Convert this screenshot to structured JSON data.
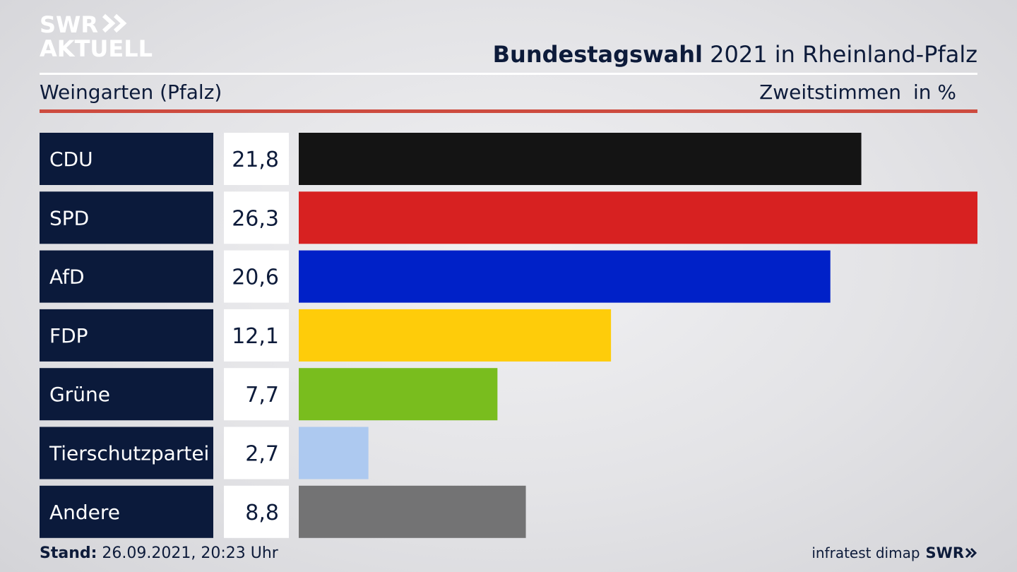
{
  "header": {
    "logo_line1": "SWR",
    "logo_line2": "AKTUELL",
    "title_bold": "Bundestagswahl",
    "title_rest": " 2021 in Rheinland-Pfalz",
    "subtitle": "Weingarten (Pfalz)",
    "vote_type": "Zweitstimmen",
    "unit": "in %"
  },
  "chart_data": {
    "type": "bar",
    "orientation": "horizontal",
    "categories": [
      "CDU",
      "SPD",
      "AfD",
      "FDP",
      "Grüne",
      "Tierschutzpartei",
      "Andere"
    ],
    "values": [
      21.8,
      26.3,
      20.6,
      12.1,
      7.7,
      2.7,
      8.8
    ],
    "value_labels": [
      "21,8",
      "26,3",
      "20,6",
      "12,1",
      "7,7",
      "2,7",
      "8,8"
    ],
    "colors": [
      "#141414",
      "#d72121",
      "#0021c8",
      "#fecc0a",
      "#79bd1e",
      "#adc9f0",
      "#737374"
    ],
    "grid": false,
    "legend": "none"
  },
  "footer": {
    "stand_label": "Stand:",
    "stand_value": " 26.09.2021, 20:23 Uhr",
    "source": "infratest dimap",
    "brand": "SWR"
  }
}
